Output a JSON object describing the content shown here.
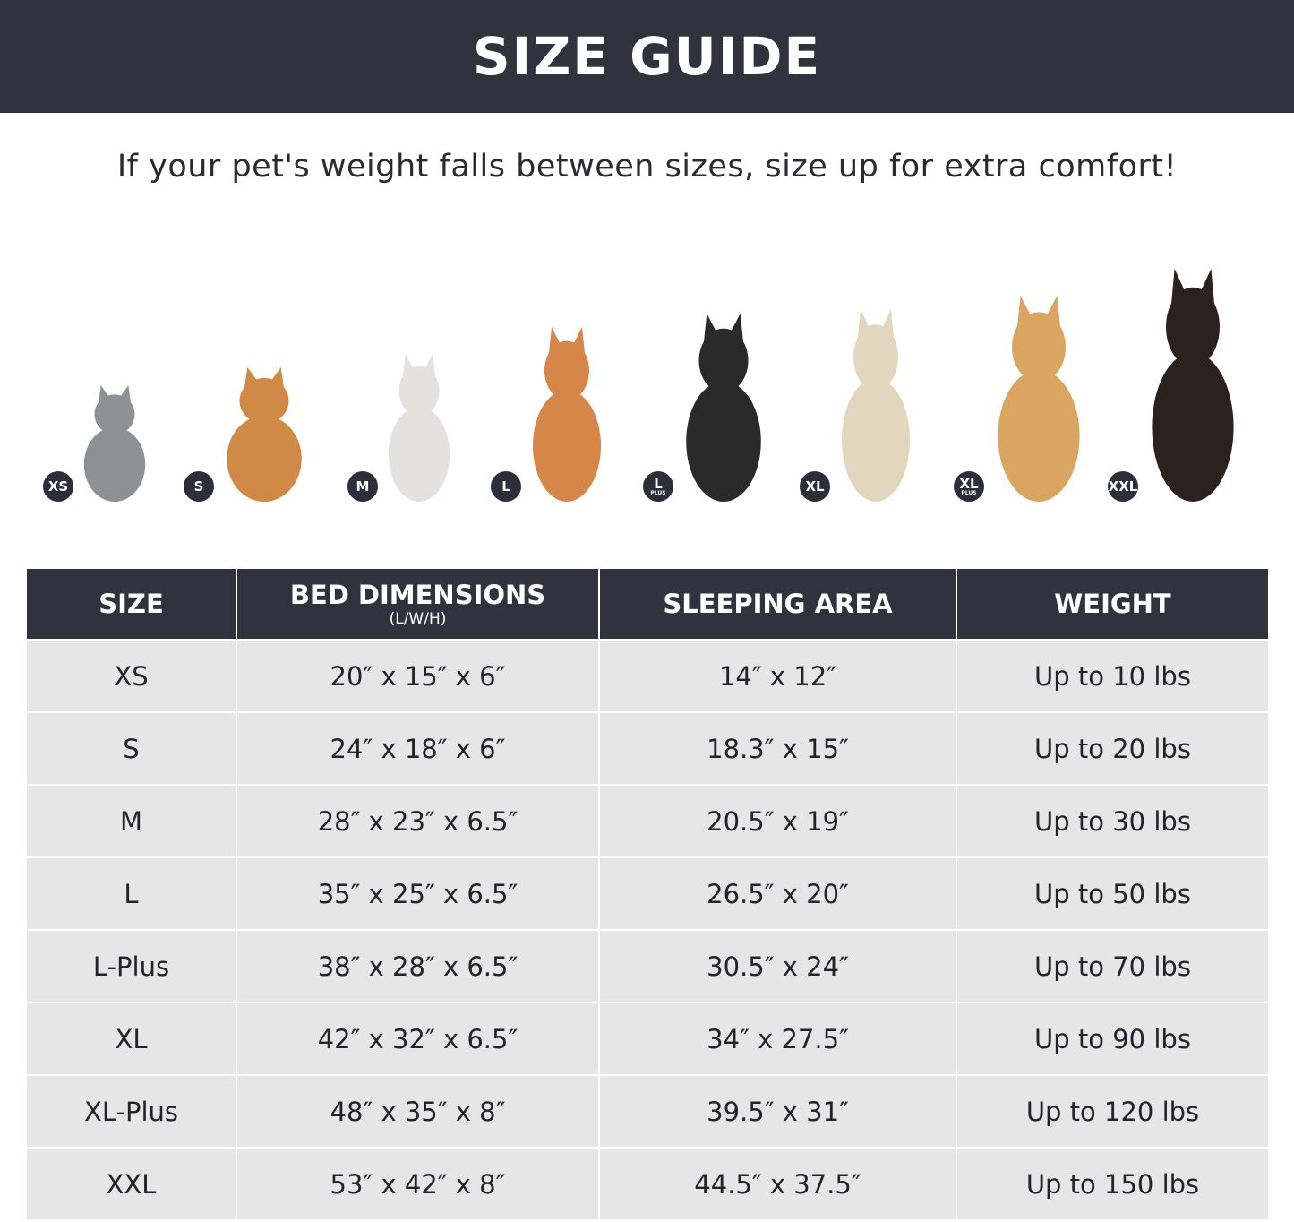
{
  "header": {
    "title": "SIZE GUIDE"
  },
  "subtitle": "If your pet's weight falls between sizes, size up for extra comfort!",
  "pets": [
    {
      "badge": "XS",
      "plus": "",
      "animal": "cat",
      "color": "#8f9095"
    },
    {
      "badge": "S",
      "plus": "",
      "animal": "pomeranian",
      "color": "#d08a45"
    },
    {
      "badge": "M",
      "plus": "",
      "animal": "french-bulldog",
      "color": "#e4e2de"
    },
    {
      "badge": "L",
      "plus": "",
      "animal": "shiba-inu",
      "color": "#d7864a"
    },
    {
      "badge": "L",
      "plus": "PLUS",
      "animal": "border-collie",
      "color": "#2a2a2a"
    },
    {
      "badge": "XL",
      "plus": "",
      "animal": "labrador",
      "color": "#e3d6bf"
    },
    {
      "badge": "XL",
      "plus": "PLUS",
      "animal": "golden-retriever",
      "color": "#d9a560"
    },
    {
      "badge": "XXL",
      "plus": "",
      "animal": "doberman",
      "color": "#2b2220"
    }
  ],
  "table": {
    "headers": [
      {
        "label": "SIZE",
        "sub": ""
      },
      {
        "label": "BED DIMENSIONS",
        "sub": "(L/W/H)"
      },
      {
        "label": "SLEEPING AREA",
        "sub": ""
      },
      {
        "label": "WEIGHT",
        "sub": ""
      }
    ],
    "rows": [
      [
        "XS",
        "20″ x 15″ x 6″",
        "14″ x 12″",
        "Up to 10 lbs"
      ],
      [
        "S",
        "24″ x 18″ x 6″",
        "18.3″ x 15″",
        "Up to 20 lbs"
      ],
      [
        "M",
        "28″ x 23″ x 6.5″",
        "20.5″ x 19″",
        "Up to 30 lbs"
      ],
      [
        "L",
        "35″ x 25″ x 6.5″",
        "26.5″ x 20″",
        "Up to 50 lbs"
      ],
      [
        "L-Plus",
        "38″ x 28″ x 6.5″",
        "30.5″ x 24″",
        "Up to 70 lbs"
      ],
      [
        "XL",
        "42″ x 32″ x 6.5″",
        "34″ x 27.5″",
        "Up to 90 lbs"
      ],
      [
        "XL-Plus",
        "48″ x 35″ x 8″",
        "39.5″ x 31″",
        "Up to 120 lbs"
      ],
      [
        "XXL",
        "53″ x 42″ x 8″",
        "44.5″ x 37.5″",
        "Up to 150 lbs"
      ]
    ]
  },
  "colors": {
    "dark": "#32323e",
    "row": "#e6e6e6"
  }
}
